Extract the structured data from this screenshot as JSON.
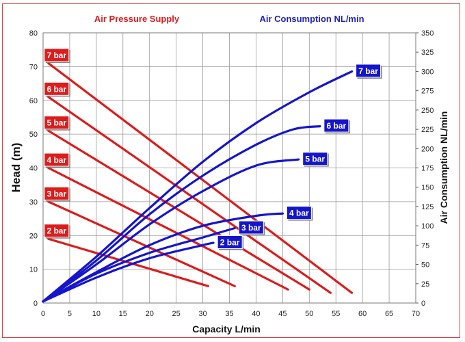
{
  "chart_data": {
    "type": "line",
    "title_left": "Air Pressure Supply",
    "title_right": "Air Consumption NL/min",
    "xlabel": "Capacity L/min",
    "ylabel": "Head (m)",
    "y2label": "Air Consumption NL/min",
    "xlim": [
      0,
      70
    ],
    "ylim": [
      0,
      80
    ],
    "y2lim": [
      0,
      350
    ],
    "x_ticks": [
      0,
      5,
      10,
      15,
      20,
      25,
      30,
      35,
      40,
      45,
      50,
      55,
      60,
      65,
      70
    ],
    "y_ticks": [
      0,
      10,
      20,
      30,
      40,
      50,
      60,
      70,
      80
    ],
    "y2_ticks": [
      0,
      25,
      50,
      75,
      100,
      125,
      150,
      175,
      200,
      225,
      250,
      275,
      300,
      325,
      350
    ],
    "colors": {
      "head": "#dd1c1c",
      "air": "#1515cc",
      "frame": "#d84040",
      "label_left": "#dd1c1c",
      "label_right": "#2222bb"
    },
    "head_series": [
      {
        "name": "7 bar",
        "label": "7 bar",
        "points": [
          [
            1,
            71
          ],
          [
            58,
            3
          ]
        ]
      },
      {
        "name": "6 bar",
        "label": "6 bar",
        "points": [
          [
            1,
            61
          ],
          [
            54,
            3
          ]
        ]
      },
      {
        "name": "5 bar",
        "label": "5 bar",
        "points": [
          [
            1,
            51
          ],
          [
            50,
            4
          ]
        ]
      },
      {
        "name": "4 bar",
        "label": "4 bar",
        "points": [
          [
            1,
            40
          ],
          [
            46,
            4
          ]
        ]
      },
      {
        "name": "3 bar",
        "label": "3 bar",
        "points": [
          [
            1,
            30
          ],
          [
            36,
            5
          ]
        ]
      },
      {
        "name": "2 bar",
        "label": "2 bar",
        "points": [
          [
            1,
            19
          ],
          [
            31,
            5
          ]
        ]
      }
    ],
    "air_series": [
      {
        "name": "7 bar",
        "label": "7 bar",
        "points": [
          [
            0,
            2
          ],
          [
            10,
            60
          ],
          [
            20,
            123
          ],
          [
            30,
            183
          ],
          [
            40,
            233
          ],
          [
            50,
            273
          ],
          [
            58,
            300
          ]
        ]
      },
      {
        "name": "6 bar",
        "label": "6 bar",
        "points": [
          [
            0,
            2
          ],
          [
            10,
            55
          ],
          [
            20,
            115
          ],
          [
            30,
            165
          ],
          [
            40,
            205
          ],
          [
            47,
            225
          ],
          [
            52,
            229
          ]
        ]
      },
      {
        "name": "5 bar",
        "label": "5 bar",
        "points": [
          [
            0,
            2
          ],
          [
            10,
            50
          ],
          [
            20,
            102
          ],
          [
            30,
            145
          ],
          [
            40,
            178
          ],
          [
            48,
            186
          ]
        ]
      },
      {
        "name": "4 bar",
        "label": "4 bar",
        "points": [
          [
            0,
            2
          ],
          [
            10,
            40
          ],
          [
            20,
            75
          ],
          [
            30,
            100
          ],
          [
            40,
            113
          ],
          [
            45,
            116
          ]
        ]
      },
      {
        "name": "3 bar",
        "label": "3 bar",
        "points": [
          [
            0,
            2
          ],
          [
            10,
            38
          ],
          [
            20,
            65
          ],
          [
            30,
            85
          ],
          [
            36,
            97
          ]
        ]
      },
      {
        "name": "2 bar",
        "label": "2 bar",
        "points": [
          [
            0,
            2
          ],
          [
            10,
            33
          ],
          [
            20,
            58
          ],
          [
            30,
            75
          ],
          [
            32,
            78
          ]
        ]
      }
    ]
  }
}
